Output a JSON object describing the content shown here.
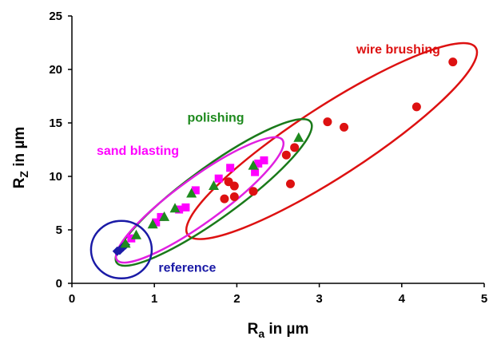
{
  "chart_data": {
    "type": "scatter",
    "xlabel": {
      "main": "R",
      "sub": "a",
      "suffix": " in µm"
    },
    "ylabel": {
      "main": "R",
      "sub": "Z",
      "suffix": " in µm"
    },
    "xlim": [
      0,
      5
    ],
    "ylim": [
      0,
      25
    ],
    "x_ticks": [
      0,
      1,
      2,
      3,
      4,
      5
    ],
    "y_ticks": [
      0,
      5,
      10,
      15,
      20,
      25
    ],
    "grid": false,
    "series": [
      {
        "name": "reference",
        "marker": "diamond",
        "color": "#1a1aa6",
        "ellipse_color": "#1a1aa6",
        "ellipse": {
          "cx": 0.6,
          "cy": 3.2,
          "rx": 0.72,
          "ry": 0.36,
          "angle_deg": 0
        },
        "points": [
          [
            0.55,
            3.0
          ],
          [
            0.58,
            3.1
          ],
          [
            0.62,
            3.4
          ],
          [
            0.65,
            3.6
          ]
        ]
      },
      {
        "name": "sand blasting",
        "marker": "square",
        "color": "#ff00ff",
        "ellipse_color": "#e020e0",
        "ellipse": {
          "cx": 1.55,
          "cy": 7.7,
          "rx": 1.85,
          "ry": 0.28,
          "angle_deg": 0
        },
        "points": [
          [
            0.72,
            4.2
          ],
          [
            1.02,
            5.7
          ],
          [
            1.08,
            6.2
          ],
          [
            1.3,
            6.9
          ],
          [
            1.38,
            7.1
          ],
          [
            1.5,
            8.7
          ],
          [
            1.78,
            9.8
          ],
          [
            1.92,
            10.8
          ],
          [
            2.22,
            10.4
          ],
          [
            2.26,
            11.2
          ],
          [
            2.33,
            11.5
          ]
        ]
      },
      {
        "name": "polishing",
        "marker": "triangle",
        "color": "#1e8a1e",
        "ellipse_color": "#1a7a1a",
        "ellipse": {
          "cx": 1.65,
          "cy": 8.5,
          "rx": 2.2,
          "ry": 0.32,
          "angle_deg": 0
        },
        "points": [
          [
            0.65,
            3.7
          ],
          [
            0.78,
            4.5
          ],
          [
            0.98,
            5.5
          ],
          [
            1.12,
            6.2
          ],
          [
            1.25,
            7.0
          ],
          [
            1.45,
            8.4
          ],
          [
            1.72,
            9.1
          ],
          [
            2.2,
            11.0
          ],
          [
            2.75,
            13.6
          ]
        ]
      },
      {
        "name": "wire brushing",
        "marker": "circle",
        "color": "#dd1111",
        "ellipse_color": "#dd1111",
        "ellipse": {
          "cx": 3.0,
          "cy": 14.0,
          "rx": 2.1,
          "ry": 0.45,
          "angle_deg": 0
        },
        "points": [
          [
            1.85,
            7.9
          ],
          [
            1.9,
            9.5
          ],
          [
            1.97,
            8.1
          ],
          [
            1.97,
            9.1
          ],
          [
            2.2,
            8.6
          ],
          [
            2.6,
            12.0
          ],
          [
            2.65,
            9.3
          ],
          [
            2.7,
            12.7
          ],
          [
            3.1,
            15.1
          ],
          [
            3.3,
            14.6
          ],
          [
            4.18,
            16.5
          ],
          [
            4.62,
            20.7
          ]
        ]
      }
    ],
    "group_labels": [
      {
        "text": "wire brushing",
        "x": 3.45,
        "y": 21.5,
        "color": "#dd1111"
      },
      {
        "text": "polishing",
        "x": 1.4,
        "y": 15.1,
        "color": "#1e8a1e"
      },
      {
        "text": "sand blasting",
        "x": 0.3,
        "y": 12.0,
        "color": "#ff00ff"
      },
      {
        "text": "reference",
        "x": 1.05,
        "y": 1.1,
        "color": "#1a1aa6"
      }
    ]
  }
}
